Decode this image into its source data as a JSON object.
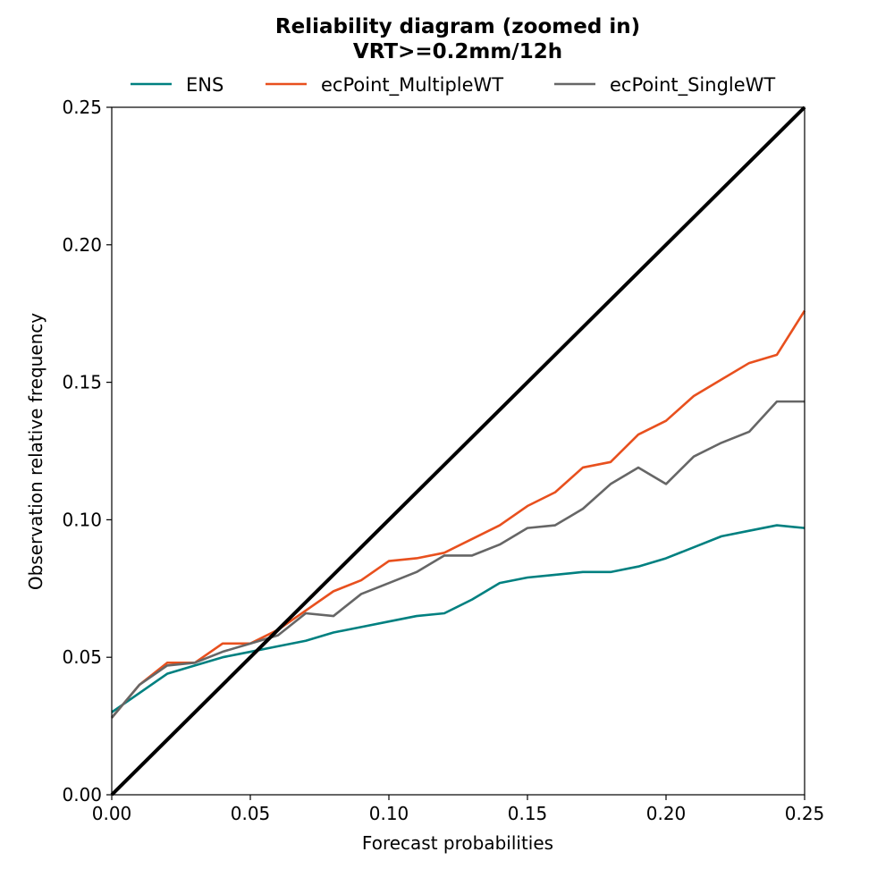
{
  "chart_data": {
    "type": "line",
    "title": "Reliability diagram (zoomed in)",
    "subtitle": "VRT>=0.2mm/12h",
    "xlabel": "Forecast probabilities",
    "ylabel": "Observation relative frequency",
    "xlim": [
      0,
      0.25
    ],
    "ylim": [
      0,
      0.25
    ],
    "xticks": [
      "0.00",
      "0.05",
      "0.10",
      "0.15",
      "0.20",
      "0.25"
    ],
    "yticks": [
      "0.00",
      "0.05",
      "0.10",
      "0.15",
      "0.20",
      "0.25"
    ],
    "grid": false,
    "legend_position": "top-center",
    "x": [
      0,
      0.01,
      0.02,
      0.03,
      0.04,
      0.05,
      0.06,
      0.07,
      0.08,
      0.09,
      0.1,
      0.11,
      0.12,
      0.13,
      0.14,
      0.15,
      0.16,
      0.17,
      0.18,
      0.19,
      0.2,
      0.21,
      0.22,
      0.23,
      0.24,
      0.25
    ],
    "series": [
      {
        "name": "ENS",
        "color": "#008080",
        "values": [
          0.03,
          0.037,
          0.044,
          0.047,
          0.05,
          0.052,
          0.054,
          0.056,
          0.059,
          0.061,
          0.063,
          0.065,
          0.066,
          0.071,
          0.077,
          0.079,
          0.08,
          0.081,
          0.081,
          0.083,
          0.086,
          0.09,
          0.094,
          0.096,
          0.098,
          0.097
        ]
      },
      {
        "name": "ecPoint_MultipleWT",
        "color": "#e8501e",
        "values": [
          0.028,
          0.04,
          0.048,
          0.048,
          0.055,
          0.055,
          0.06,
          0.067,
          0.074,
          0.078,
          0.085,
          0.086,
          0.088,
          0.093,
          0.098,
          0.105,
          0.11,
          0.119,
          0.121,
          0.131,
          0.136,
          0.145,
          0.151,
          0.157,
          0.16,
          0.176
        ]
      },
      {
        "name": "ecPoint_SingleWT",
        "color": "#666666",
        "values": [
          0.028,
          0.04,
          0.047,
          0.048,
          0.052,
          0.055,
          0.058,
          0.066,
          0.065,
          0.073,
          0.077,
          0.081,
          0.087,
          0.087,
          0.091,
          0.097,
          0.098,
          0.104,
          0.113,
          0.119,
          0.113,
          0.123,
          0.128,
          0.132,
          0.143,
          0.143
        ]
      }
    ],
    "reference_line": {
      "color": "#000000",
      "x": [
        0,
        0.25
      ],
      "y": [
        0,
        0.25
      ]
    }
  }
}
